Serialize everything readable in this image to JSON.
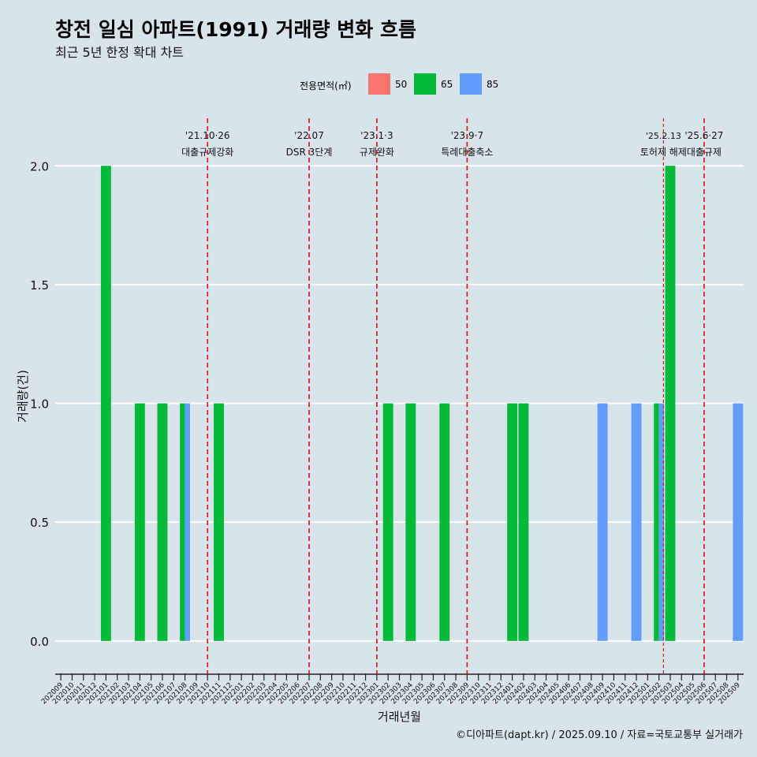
{
  "title": "창전 일심 아파트(1991) 거래량 변화 흐름",
  "subtitle": "최근 5년 한정 확대 차트",
  "caption": "©디아파트(dapt.kr) / 2025.09.10 / 자료=국토교통부 실거래가",
  "legend": {
    "title": "전용면적(㎡)",
    "items": [
      {
        "label": "50",
        "color": "#f8766d"
      },
      {
        "label": "65",
        "color": "#00ba38"
      },
      {
        "label": "85",
        "color": "#619cff"
      }
    ]
  },
  "chart_data": {
    "type": "bar",
    "title": "창전 일심 아파트(1991) 거래량 변화 흐름",
    "xlabel": "거래년월",
    "ylabel": "거래량(건)",
    "ylim": [
      -0.14,
      2.2
    ],
    "yticks": [
      0.0,
      0.5,
      1.0,
      1.5,
      2.0
    ],
    "ytick_labels": [
      "0.0",
      "0.5",
      "1.0",
      "1.5",
      "2.0"
    ],
    "categories": [
      "202009",
      "202010",
      "202011",
      "202012",
      "202101",
      "202102",
      "202103",
      "202104",
      "202105",
      "202106",
      "202107",
      "202108",
      "202109",
      "202110",
      "202111",
      "202112",
      "202201",
      "202202",
      "202203",
      "202204",
      "202205",
      "202206",
      "202207",
      "202208",
      "202209",
      "202210",
      "202211",
      "202212",
      "202301",
      "202302",
      "202303",
      "202304",
      "202305",
      "202306",
      "202307",
      "202308",
      "202309",
      "202310",
      "202311",
      "202312",
      "202401",
      "202402",
      "202403",
      "202404",
      "202405",
      "202406",
      "202407",
      "202408",
      "202409",
      "202410",
      "202411",
      "202412",
      "202501",
      "202502",
      "202503",
      "202504",
      "202505",
      "202506",
      "202507",
      "202508",
      "202509"
    ],
    "bars": [
      {
        "month": "202101",
        "area": "65",
        "value": 2
      },
      {
        "month": "202104",
        "area": "65",
        "value": 1
      },
      {
        "month": "202106",
        "area": "65",
        "value": 1
      },
      {
        "month": "202108",
        "area": "65",
        "value": 1
      },
      {
        "month": "202108",
        "area": "85",
        "value": 1
      },
      {
        "month": "202111",
        "area": "65",
        "value": 1
      },
      {
        "month": "202302",
        "area": "65",
        "value": 1
      },
      {
        "month": "202304",
        "area": "65",
        "value": 1
      },
      {
        "month": "202307",
        "area": "65",
        "value": 1
      },
      {
        "month": "202401",
        "area": "65",
        "value": 1
      },
      {
        "month": "202402",
        "area": "65",
        "value": 1
      },
      {
        "month": "202409",
        "area": "85",
        "value": 1
      },
      {
        "month": "202412",
        "area": "85",
        "value": 1
      },
      {
        "month": "202502",
        "area": "85",
        "value": 1
      },
      {
        "month": "202502",
        "area": "65",
        "value": 1
      },
      {
        "month": "202503",
        "area": "65",
        "value": 2
      },
      {
        "month": "202509",
        "area": "85",
        "value": 1
      }
    ],
    "events": [
      {
        "position": "202110",
        "date": "'21.10·26",
        "label": "대출규제강화"
      },
      {
        "position": "202207",
        "date": "'22.07",
        "label": "DSR 3단계"
      },
      {
        "position": "202301",
        "date": "'23.1·3",
        "label": "규제완화"
      },
      {
        "position": "202309",
        "date": "'23.9·7",
        "label": "특례대출축소"
      },
      {
        "position": "202502.4",
        "date": "'25.2.13",
        "label": "토허제 해제"
      },
      {
        "position": "202506",
        "date": "'25.6·27",
        "label": "대출규제"
      }
    ]
  }
}
